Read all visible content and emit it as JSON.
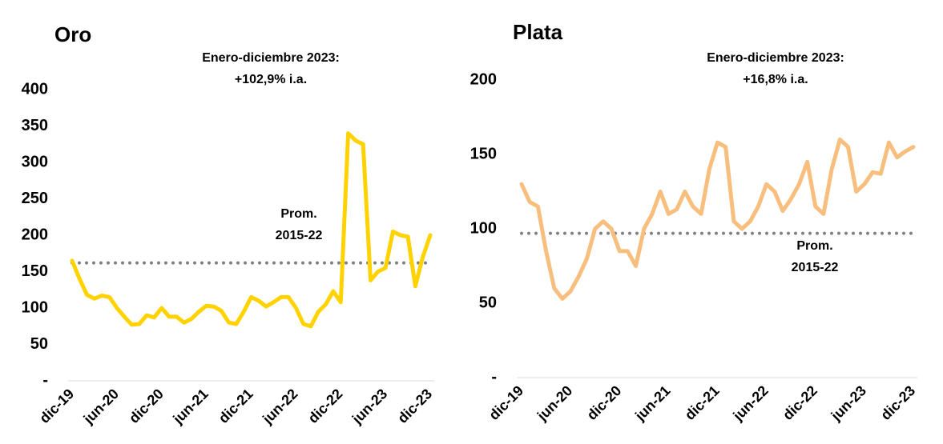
{
  "chart_data": [
    {
      "type": "line",
      "title": "Oro",
      "annotation": [
        "Enero-diciembre 2023:",
        "+102,9% i.a."
      ],
      "average_label": [
        "Prom.",
        "2015-22"
      ],
      "average": 162,
      "average_color": "#808080",
      "categories": [
        "dic-19",
        null,
        null,
        null,
        null,
        null,
        "jun-20",
        null,
        null,
        null,
        null,
        null,
        "dic-20",
        null,
        null,
        null,
        null,
        null,
        "jun-21",
        null,
        null,
        null,
        null,
        null,
        "dic-21",
        null,
        null,
        null,
        null,
        null,
        "jun-22",
        null,
        null,
        null,
        null,
        null,
        "dic-22",
        null,
        null,
        null,
        null,
        null,
        "jun-23",
        null,
        null,
        null,
        null,
        null,
        "dic-23"
      ],
      "values": [
        165,
        140,
        118,
        113,
        117,
        115,
        100,
        88,
        77,
        78,
        90,
        87,
        100,
        88,
        88,
        80,
        85,
        95,
        103,
        102,
        96,
        80,
        78,
        95,
        115,
        110,
        102,
        108,
        115,
        115,
        100,
        78,
        75,
        95,
        105,
        123,
        108,
        340,
        330,
        325,
        138,
        150,
        155,
        205,
        200,
        198,
        130,
        170,
        200
      ],
      "color": "#ffd200",
      "ylim": [
        0,
        400
      ],
      "yticks": [
        {
          "value": 0,
          "label": "-"
        },
        50,
        100,
        150,
        200,
        250,
        300,
        350,
        400
      ]
    },
    {
      "type": "line",
      "title": "Plata",
      "annotation": [
        "Enero-diciembre 2023:",
        "+16,8% i.a."
      ],
      "average_label": [
        "Prom.",
        "2015-22"
      ],
      "average": 97,
      "average_color": "#808080",
      "categories": [
        "dic-19",
        null,
        null,
        null,
        null,
        null,
        "jun-20",
        null,
        null,
        null,
        null,
        null,
        "dic-20",
        null,
        null,
        null,
        null,
        null,
        "jun-21",
        null,
        null,
        null,
        null,
        null,
        "dic-21",
        null,
        null,
        null,
        null,
        null,
        "jun-22",
        null,
        null,
        null,
        null,
        null,
        "dic-22",
        null,
        null,
        null,
        null,
        null,
        "jun-23",
        null,
        null,
        null,
        null,
        null,
        "dic-23"
      ],
      "values": [
        130,
        118,
        115,
        85,
        60,
        53,
        58,
        68,
        80,
        100,
        105,
        100,
        85,
        85,
        75,
        100,
        110,
        125,
        110,
        113,
        125,
        115,
        110,
        140,
        158,
        155,
        105,
        100,
        105,
        115,
        130,
        125,
        112,
        120,
        130,
        145,
        115,
        110,
        140,
        160,
        155,
        125,
        130,
        138,
        137,
        158,
        148,
        152,
        155
      ],
      "color": "#f8be7e",
      "ylim": [
        0,
        200
      ],
      "yticks": [
        {
          "value": 0,
          "label": "-"
        },
        50,
        100,
        150,
        200
      ]
    }
  ]
}
